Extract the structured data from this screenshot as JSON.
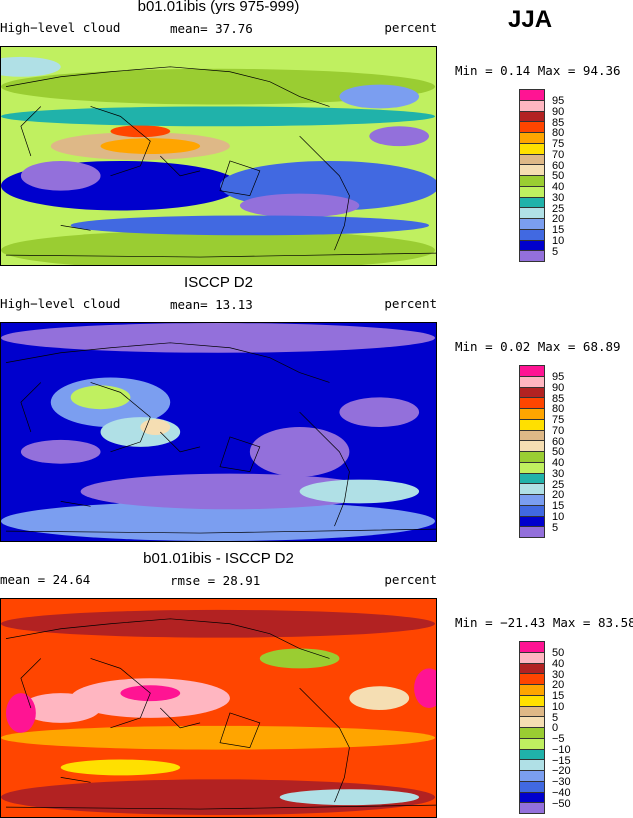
{
  "season": "JJA",
  "panels": [
    {
      "title": "b01.01ibis (yrs 975-999)",
      "left": "High−level cloud",
      "mid": "mean=  37.76",
      "right": "percent",
      "minmax": "Min =   0.14 Max =  94.36",
      "levels": [
        "95",
        "90",
        "85",
        "80",
        "75",
        "70",
        "60",
        "50",
        "40",
        "30",
        "25",
        "20",
        "15",
        "10",
        "5"
      ]
    },
    {
      "title": "ISCCP D2",
      "left": "High−level cloud",
      "mid": "mean=  13.13",
      "right": "percent",
      "minmax": "Min =   0.02 Max =  68.89",
      "levels": [
        "95",
        "90",
        "85",
        "80",
        "75",
        "70",
        "60",
        "50",
        "40",
        "30",
        "25",
        "20",
        "15",
        "10",
        "5"
      ]
    },
    {
      "title": "b01.01ibis - ISCCP D2",
      "left": "mean =  24.64",
      "mid": "rmse =  28.91",
      "right": "percent",
      "minmax": "Min = −21.43 Max =  83.58",
      "levels": [
        "50",
        "40",
        "30",
        "20",
        "15",
        "10",
        "5",
        "0",
        "−5",
        "−10",
        "−15",
        "−20",
        "−30",
        "−40",
        "−50"
      ]
    }
  ],
  "colors": [
    "#ff1493",
    "#ffb6c1",
    "#b22222",
    "#ff4500",
    "#ffa500",
    "#ffe000",
    "#deb887",
    "#f5deb3",
    "#9acd32",
    "#c0f060",
    "#20b2aa",
    "#b0e0e6",
    "#7b9ef0",
    "#4169e1",
    "#0000cd",
    "#9370db"
  ]
}
